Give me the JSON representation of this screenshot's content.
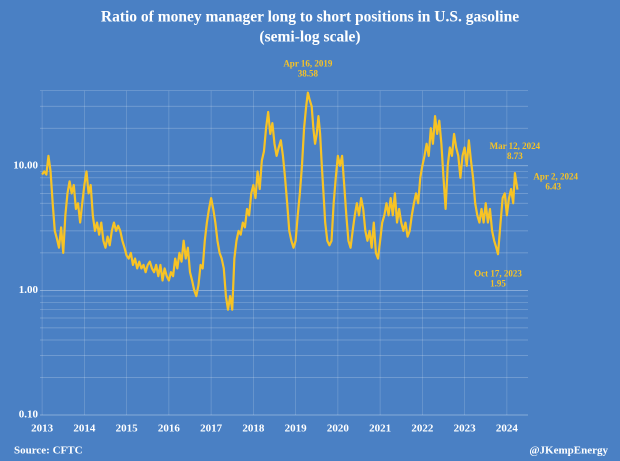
{
  "chart_data": {
    "type": "line",
    "title": "Ratio of money manager long to short positions in U.S. gasoline",
    "subtitle": "(semi-log scale)",
    "source": "Source: CFTC",
    "credit": "@JKempEnergy",
    "log_y": true,
    "grid": true,
    "xlim": [
      2012.95,
      2024.5
    ],
    "xticks": [
      2013,
      2014,
      2015,
      2016,
      2017,
      2018,
      2019,
      2020,
      2021,
      2022,
      2023,
      2024
    ],
    "ylim": [
      0.1,
      40
    ],
    "yticks": [
      {
        "value": 0.1,
        "label": "0.10"
      },
      {
        "value": 1,
        "label": "1.00"
      },
      {
        "value": 10,
        "label": "10.00"
      }
    ],
    "minor_yticks": [
      0.2,
      0.3,
      0.4,
      0.5,
      0.6,
      0.7,
      0.8,
      0.9,
      2,
      3,
      4,
      5,
      6,
      7,
      8,
      9,
      20,
      30,
      40
    ],
    "x": [
      2013.0,
      2013.05,
      2013.1,
      2013.15,
      2013.2,
      2013.25,
      2013.3,
      2013.35,
      2013.4,
      2013.45,
      2013.5,
      2013.55,
      2013.6,
      2013.65,
      2013.7,
      2013.75,
      2013.8,
      2013.85,
      2013.9,
      2013.95,
      2014.0,
      2014.05,
      2014.1,
      2014.15,
      2014.2,
      2014.25,
      2014.3,
      2014.35,
      2014.4,
      2014.45,
      2014.5,
      2014.55,
      2014.6,
      2014.65,
      2014.7,
      2014.75,
      2014.8,
      2014.85,
      2014.9,
      2014.95,
      2015.0,
      2015.05,
      2015.1,
      2015.15,
      2015.2,
      2015.25,
      2015.3,
      2015.35,
      2015.4,
      2015.45,
      2015.5,
      2015.55,
      2015.6,
      2015.65,
      2015.7,
      2015.75,
      2015.8,
      2015.85,
      2015.9,
      2015.95,
      2016.0,
      2016.05,
      2016.1,
      2016.15,
      2016.2,
      2016.25,
      2016.3,
      2016.35,
      2016.4,
      2016.45,
      2016.5,
      2016.55,
      2016.6,
      2016.65,
      2016.7,
      2016.75,
      2016.8,
      2016.85,
      2016.9,
      2016.95,
      2017.0,
      2017.05,
      2017.1,
      2017.15,
      2017.2,
      2017.25,
      2017.3,
      2017.35,
      2017.4,
      2017.45,
      2017.5,
      2017.55,
      2017.6,
      2017.65,
      2017.7,
      2017.75,
      2017.8,
      2017.85,
      2017.9,
      2017.95,
      2018.0,
      2018.05,
      2018.1,
      2018.15,
      2018.2,
      2018.25,
      2018.3,
      2018.35,
      2018.4,
      2018.45,
      2018.5,
      2018.55,
      2018.6,
      2018.65,
      2018.7,
      2018.75,
      2018.8,
      2018.85,
      2018.9,
      2018.95,
      2019.0,
      2019.05,
      2019.1,
      2019.15,
      2019.2,
      2019.25,
      2019.29,
      2019.33,
      2019.38,
      2019.42,
      2019.46,
      2019.5,
      2019.54,
      2019.58,
      2019.62,
      2019.66,
      2019.7,
      2019.75,
      2019.8,
      2019.85,
      2019.9,
      2019.95,
      2020.0,
      2020.05,
      2020.1,
      2020.15,
      2020.2,
      2020.25,
      2020.3,
      2020.35,
      2020.4,
      2020.45,
      2020.5,
      2020.55,
      2020.6,
      2020.65,
      2020.7,
      2020.75,
      2020.8,
      2020.85,
      2020.9,
      2020.95,
      2021.0,
      2021.05,
      2021.1,
      2021.15,
      2021.2,
      2021.25,
      2021.3,
      2021.35,
      2021.4,
      2021.45,
      2021.5,
      2021.55,
      2021.6,
      2021.65,
      2021.7,
      2021.75,
      2021.8,
      2021.85,
      2021.9,
      2021.95,
      2022.0,
      2022.05,
      2022.1,
      2022.15,
      2022.2,
      2022.25,
      2022.3,
      2022.35,
      2022.4,
      2022.45,
      2022.5,
      2022.55,
      2022.6,
      2022.65,
      2022.7,
      2022.75,
      2022.8,
      2022.85,
      2022.9,
      2022.95,
      2023.0,
      2023.05,
      2023.1,
      2023.15,
      2023.2,
      2023.25,
      2023.3,
      2023.35,
      2023.4,
      2023.45,
      2023.5,
      2023.55,
      2023.6,
      2023.65,
      2023.7,
      2023.75,
      2023.79,
      2023.85,
      2023.9,
      2023.95,
      2024.0,
      2024.05,
      2024.1,
      2024.15,
      2024.19,
      2024.25
    ],
    "series": [
      {
        "name": "Long/short ratio",
        "color": "#f7c325",
        "values": [
          8.5,
          9,
          8.5,
          12,
          9,
          5,
          3,
          2.6,
          2.2,
          3.2,
          2.0,
          4,
          6,
          7.5,
          6,
          7,
          4.5,
          5,
          3.5,
          5,
          7,
          9,
          6,
          7,
          4,
          3,
          3.5,
          2.8,
          3.5,
          2.5,
          2.2,
          2.7,
          2.3,
          3,
          3.5,
          3,
          3.3,
          3,
          2.5,
          2.2,
          1.9,
          1.8,
          2.0,
          1.6,
          1.8,
          1.5,
          1.7,
          1.5,
          1.6,
          1.4,
          1.6,
          1.7,
          1.5,
          1.4,
          1.6,
          1.3,
          1.6,
          1.2,
          1.5,
          1.3,
          1.2,
          1.4,
          1.3,
          1.8,
          1.5,
          2.0,
          1.7,
          2.5,
          1.8,
          2.2,
          1.4,
          1.2,
          1.0,
          0.9,
          1.1,
          1.6,
          1.5,
          2.5,
          3.5,
          4.5,
          5.5,
          4.5,
          3.5,
          2.5,
          2.0,
          1.8,
          1.5,
          0.9,
          0.7,
          0.9,
          0.7,
          1.8,
          2.5,
          3.0,
          2.8,
          3.5,
          3.2,
          4.5,
          4,
          6,
          7,
          5.5,
          9,
          6.5,
          11,
          13,
          20,
          27,
          18,
          22,
          15,
          12,
          14,
          16,
          12,
          8,
          5,
          3,
          2.5,
          2.2,
          2.5,
          4,
          6,
          10,
          20,
          30,
          38.58,
          34,
          30,
          20,
          15,
          18,
          25,
          18,
          10,
          6,
          3.5,
          2.5,
          2.3,
          2.5,
          5,
          8,
          12,
          10,
          12,
          7,
          4,
          2.5,
          2.2,
          3,
          4,
          5,
          4,
          5.5,
          4.5,
          3,
          2.5,
          3,
          2.2,
          3.5,
          2.0,
          1.8,
          2.5,
          3.5,
          4,
          5,
          4,
          5.5,
          4,
          6,
          3.5,
          4.5,
          3.5,
          3,
          3.5,
          2.7,
          3,
          4,
          5,
          6,
          5,
          8,
          10,
          12,
          15,
          12,
          20,
          15,
          25,
          18,
          23,
          15,
          8,
          4.5,
          10,
          14,
          12,
          18,
          14,
          12,
          8,
          12,
          14,
          10,
          16,
          11,
          8,
          5,
          4,
          3.5,
          4.5,
          3.5,
          5,
          3.5,
          4.5,
          3,
          2.5,
          2.2,
          1.95,
          3.5,
          5.5,
          6,
          4,
          5.5,
          6.5,
          5,
          8.73,
          6.43
        ]
      }
    ],
    "annotations": [
      {
        "date": "Apr 16, 2019",
        "x": 2019.29,
        "value": 38.58
      },
      {
        "date": "Mar 12, 2024",
        "x": 2024.19,
        "value": 8.73
      },
      {
        "date": "Apr 2, 2024",
        "x": 2024.25,
        "value": 6.43
      },
      {
        "date": "Oct 17, 2023",
        "x": 2023.79,
        "value": 1.95
      }
    ]
  }
}
